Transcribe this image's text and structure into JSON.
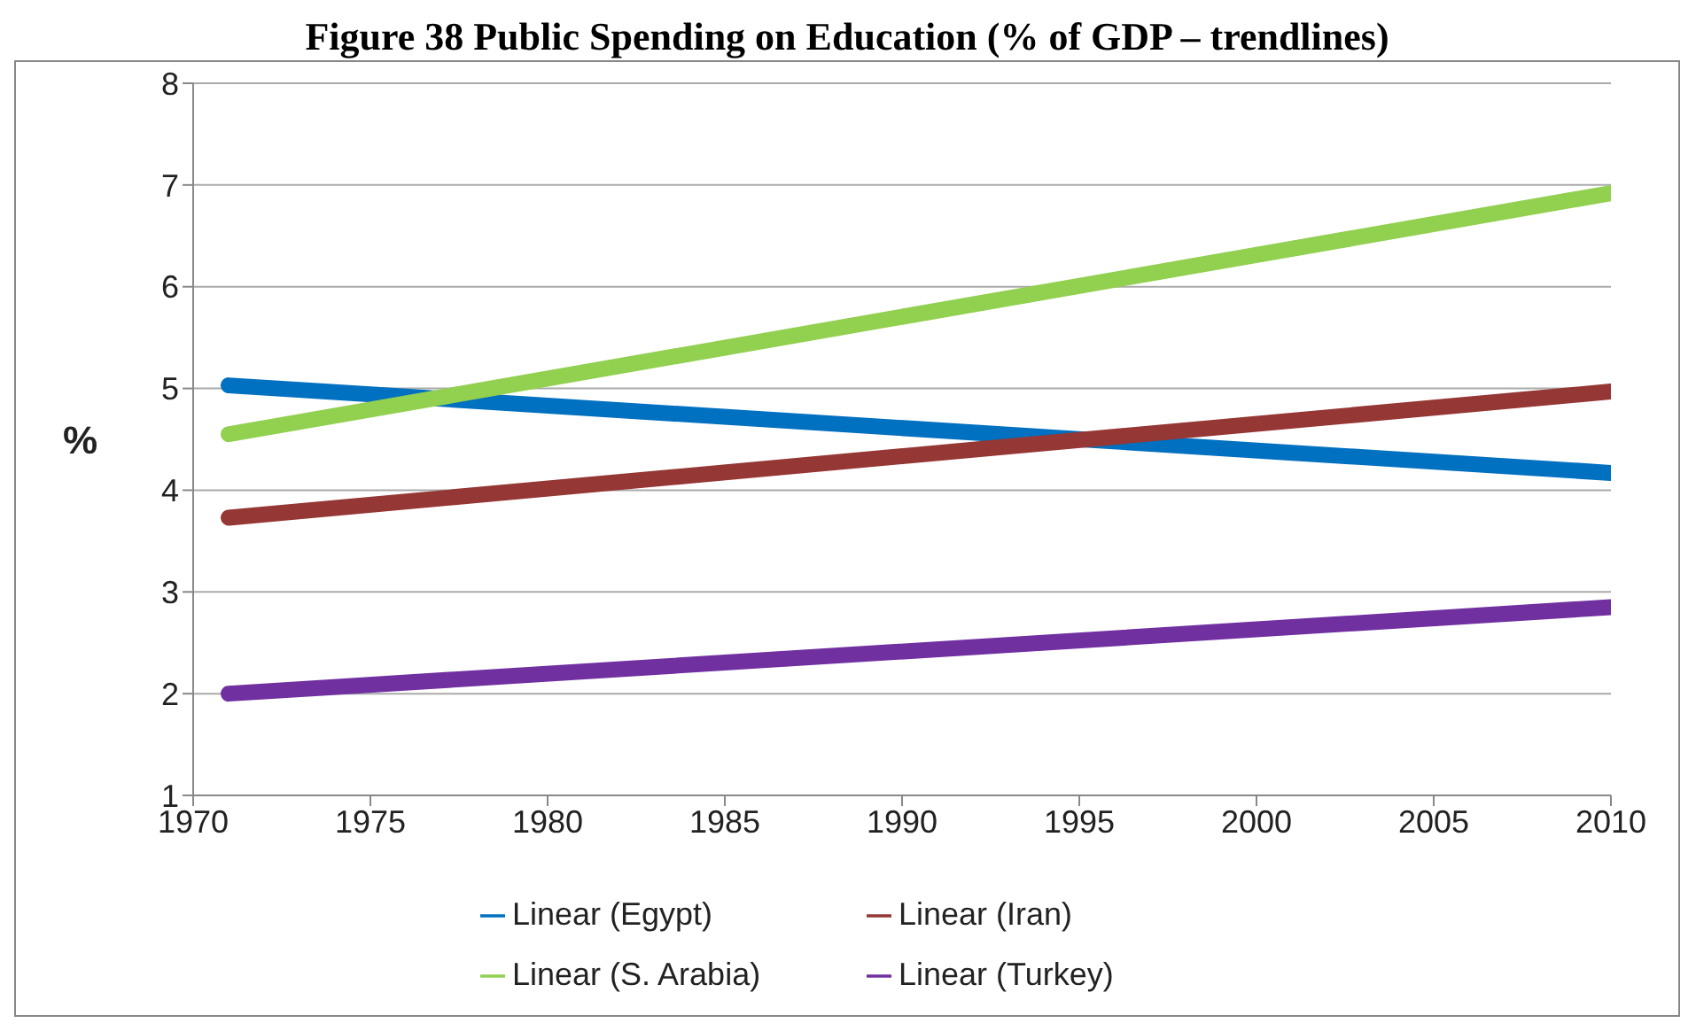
{
  "chart_data": {
    "type": "line",
    "title": "Figure 38 Public Spending on Education (% of GDP – trendlines)",
    "ylabel": "%",
    "x": [
      1971,
      2010
    ],
    "series": [
      {
        "name": "Linear (Egypt)",
        "color": "#0070c0",
        "values": [
          5.03,
          4.17
        ]
      },
      {
        "name": "Linear (Iran)",
        "color": "#953735",
        "values": [
          3.73,
          4.97
        ]
      },
      {
        "name": "Linear (S. Arabia)",
        "color": "#92d050",
        "values": [
          4.55,
          6.92
        ]
      },
      {
        "name": "Linear (Turkey)",
        "color": "#7030a0",
        "values": [
          2.0,
          2.85
        ]
      }
    ],
    "xlim": [
      1970,
      2010
    ],
    "xticks": [
      1970,
      1975,
      1980,
      1985,
      1990,
      1995,
      2000,
      2005,
      2010
    ],
    "ylim": [
      1,
      8
    ],
    "yticks": [
      1,
      2,
      3,
      4,
      5,
      6,
      7,
      8
    ],
    "grid": "y",
    "legend": "bottom",
    "marker": "none",
    "line_style": "solid"
  }
}
